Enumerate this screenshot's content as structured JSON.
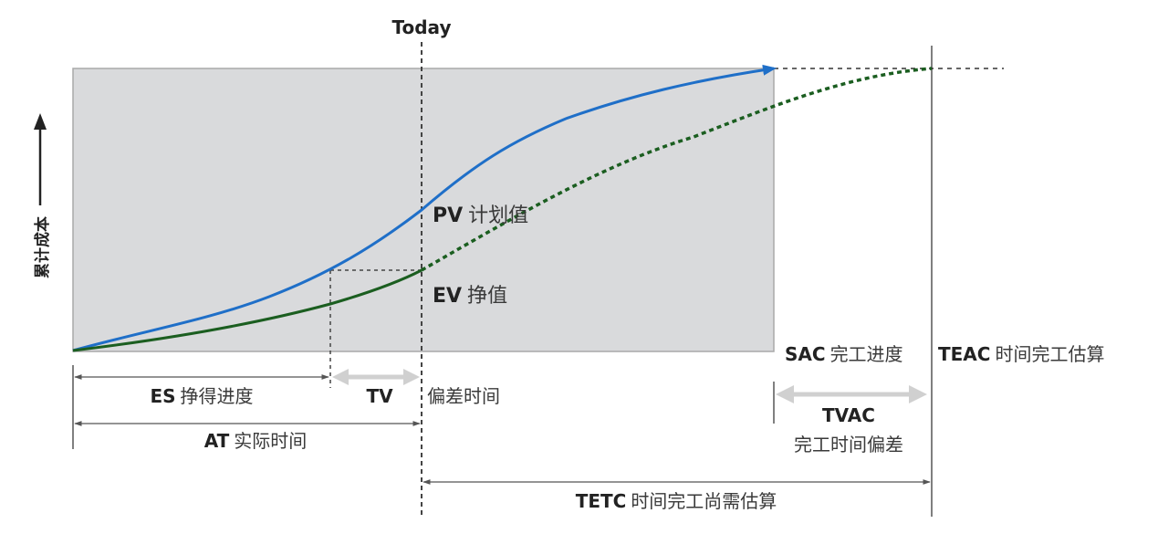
{
  "colors": {
    "plan_region": "#d9dadc",
    "plan_border": "#a9a9a9",
    "pv_line": "#1f6fc8",
    "ev_line": "#1b5e20",
    "dim_line": "#555555",
    "tv_arrow": "#d0d0d0",
    "text": "#3a3a3a",
    "text_bold": "#222222"
  },
  "labels": {
    "today": "Today",
    "y_axis": "累计成本",
    "pv_abbr": "PV",
    "pv_text": "计划值",
    "ev_abbr": "EV",
    "ev_text": "挣值",
    "sac_abbr": "SAC",
    "sac_text": "完工进度",
    "teac_abbr": "TEAC",
    "teac_text": "时间完工估算",
    "es_abbr": "ES",
    "es_text": "挣得进度",
    "tv_abbr": "TV",
    "schedule_variance": "偏差时间",
    "at_abbr": "AT",
    "at_text": "实际时间",
    "tvac_abbr": "TVAC",
    "tvac_text": "完工时间偏差",
    "tetc_abbr": "TETC",
    "tetc_text": "时间完工尚需估算"
  }
}
